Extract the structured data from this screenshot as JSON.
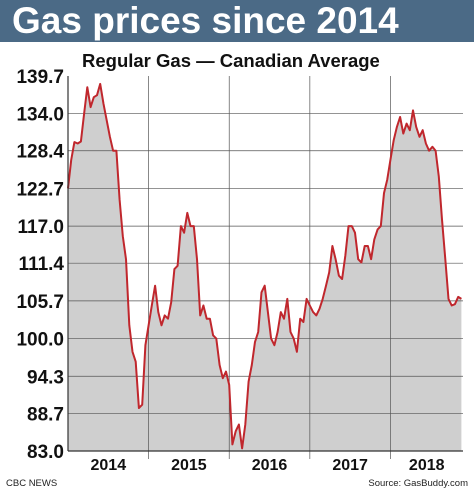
{
  "header": {
    "title": "Gas prices since 2014"
  },
  "footer": {
    "credit": "CBC NEWS",
    "source": "Source: GasBuddy.com"
  },
  "colors": {
    "title_bar": "#4b6a86",
    "line": "#c0272d",
    "area_fill": "#cfcfcf",
    "grid": "#555555"
  },
  "chart_data": {
    "type": "area",
    "title": "Regular Gas — Canadian Average",
    "xlabel": "",
    "ylabel": "",
    "ylim": [
      83.0,
      139.7
    ],
    "yticks": [
      "139.7",
      "134.0",
      "128.4",
      "122.7",
      "117.0",
      "111.4",
      "105.7",
      "100.0",
      "94.3",
      "88.7",
      "83.0"
    ],
    "xlim": [
      2014.0,
      2018.9
    ],
    "xticks": [
      "2014",
      "2015",
      "2016",
      "2017",
      "2018"
    ],
    "grid": true,
    "series": [
      {
        "x": [
          2014.0,
          2014.04,
          2014.08,
          2014.12,
          2014.16,
          2014.2,
          2014.24,
          2014.28,
          2014.32,
          2014.36,
          2014.4,
          2014.44,
          2014.48,
          2014.52,
          2014.56,
          2014.6,
          2014.64,
          2014.68,
          2014.72,
          2014.76,
          2014.8,
          2014.84,
          2014.88,
          2014.92,
          2014.96,
          2015.0,
          2015.04,
          2015.08,
          2015.12,
          2015.16,
          2015.2,
          2015.24,
          2015.28,
          2015.32,
          2015.36,
          2015.4,
          2015.44,
          2015.48,
          2015.52,
          2015.56,
          2015.6,
          2015.64,
          2015.68,
          2015.72,
          2015.76,
          2015.8,
          2015.84,
          2015.88,
          2015.92,
          2015.96,
          2016.0,
          2016.04,
          2016.08,
          2016.12,
          2016.16,
          2016.2,
          2016.24,
          2016.28,
          2016.32,
          2016.36,
          2016.4,
          2016.44,
          2016.48,
          2016.52,
          2016.56,
          2016.6,
          2016.64,
          2016.68,
          2016.72,
          2016.76,
          2016.8,
          2016.84,
          2016.88,
          2016.92,
          2016.96,
          2017.0,
          2017.04,
          2017.08,
          2017.12,
          2017.16,
          2017.2,
          2017.24,
          2017.28,
          2017.32,
          2017.36,
          2017.4,
          2017.44,
          2017.48,
          2017.52,
          2017.56,
          2017.6,
          2017.64,
          2017.68,
          2017.72,
          2017.76,
          2017.8,
          2017.84,
          2017.88,
          2017.92,
          2017.96,
          2018.0,
          2018.04,
          2018.08,
          2018.12,
          2018.16,
          2018.2,
          2018.24,
          2018.28,
          2018.32,
          2018.36,
          2018.4,
          2018.44,
          2018.48,
          2018.52,
          2018.56,
          2018.6,
          2018.64,
          2018.68,
          2018.72,
          2018.76,
          2018.8,
          2018.84,
          2018.88
        ],
        "values": [
          122.7,
          127.0,
          129.7,
          129.5,
          129.8,
          134.0,
          138.0,
          135.0,
          136.5,
          136.8,
          138.5,
          135.5,
          133.0,
          130.5,
          128.4,
          128.4,
          121.0,
          115.5,
          112.0,
          102.0,
          98.0,
          96.5,
          89.5,
          90.0,
          99.0,
          102.0,
          105.0,
          108.0,
          104.0,
          102.0,
          103.5,
          103.0,
          105.5,
          110.5,
          111.0,
          117.0,
          116.0,
          119.0,
          117.0,
          117.0,
          112.0,
          103.5,
          105.0,
          103.0,
          103.0,
          100.5,
          100.0,
          96.0,
          94.0,
          95.0,
          93.0,
          84.0,
          86.0,
          87.0,
          83.4,
          87.0,
          93.5,
          96.0,
          99.5,
          101.0,
          107.0,
          108.0,
          104.0,
          100.0,
          99.0,
          101.0,
          104.0,
          103.0,
          106.0,
          101.0,
          100.0,
          98.0,
          103.0,
          102.5,
          106.0,
          105.0,
          104.0,
          103.5,
          104.5,
          106.0,
          108.0,
          110.0,
          114.0,
          112.0,
          109.5,
          109.0,
          112.5,
          117.0,
          117.0,
          116.0,
          112.0,
          111.5,
          114.0,
          114.0,
          112.0,
          115.0,
          116.5,
          117.0,
          122.0,
          124.0,
          127.0,
          130.0,
          132.0,
          133.5,
          131.0,
          132.5,
          131.5,
          134.5,
          132.0,
          130.5,
          131.5,
          129.5,
          128.4,
          129.0,
          128.4,
          124.5,
          118.0,
          112.0,
          106.0,
          105.0,
          105.2,
          106.3,
          106.0
        ]
      }
    ]
  }
}
